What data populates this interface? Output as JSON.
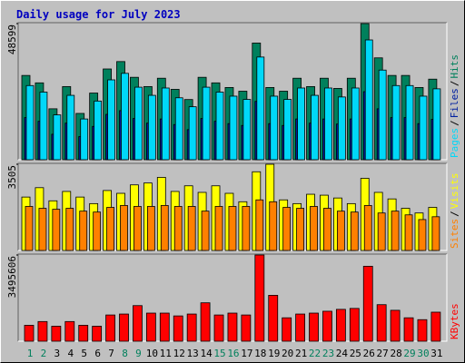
{
  "chart_data": [
    {
      "type": "bar",
      "title": "Daily usage for July 2023",
      "series": [
        {
          "name": "Pages",
          "color": "#00D8F8",
          "values": [
            26475,
            24147,
            16001,
            22984,
            14546,
            20947,
            28511,
            30839,
            25893,
            22984,
            25602,
            22111,
            18910,
            25893,
            24147,
            22693,
            21528,
            36657,
            22693,
            21528,
            25602,
            22984,
            25602,
            22401,
            25602,
            42767,
            32002,
            26475,
            26475,
            22693,
            25311
          ]
        },
        {
          "name": "Files",
          "color": "#0020A0",
          "values": [
            15042,
            13720,
            9091,
            13059,
            8265,
            11901,
            16199,
            17522,
            14712,
            13059,
            14546,
            12563,
            10744,
            14712,
            13720,
            12893,
            12232,
            20828,
            12893,
            12232,
            14546,
            13059,
            14546,
            12728,
            14546,
            24299,
            18183,
            15042,
            15042,
            12893,
            14381
          ]
        },
        {
          "name": "Hits",
          "color": "#00805C",
          "values": [
            30085,
            27440,
            18183,
            26118,
            16530,
            23803,
            32399,
            35044,
            29424,
            26118,
            29093,
            25126,
            21489,
            29424,
            27440,
            25787,
            24464,
            41656,
            25787,
            24464,
            29093,
            26118,
            29093,
            25456,
            29093,
            48599,
            36366,
            30085,
            30085,
            25787,
            28762
          ]
        }
      ],
      "legend_separator": "/",
      "ylim": [
        0,
        48599
      ],
      "yticks": [
        48599
      ]
    },
    {
      "type": "bar",
      "series": [
        {
          "name": "Sites",
          "color": "#FF8000",
          "values": [
            1791,
            1715,
            1676,
            1715,
            1600,
            1562,
            1753,
            1829,
            1791,
            1791,
            1829,
            1791,
            1791,
            1600,
            1791,
            1791,
            1791,
            2057,
            1981,
            1753,
            1715,
            1791,
            1715,
            1600,
            1562,
            1829,
            1524,
            1600,
            1448,
            1257,
            1372
          ]
        },
        {
          "name": "Visits",
          "color": "#FFFF00",
          "values": [
            2172,
            2553,
            2019,
            2400,
            2172,
            1905,
            2438,
            2324,
            2667,
            2743,
            2972,
            2400,
            2629,
            2362,
            2629,
            2324,
            1981,
            3200,
            3505,
            2057,
            1905,
            2286,
            2248,
            2134,
            1905,
            2934,
            2362,
            2096,
            1715,
            1524,
            1753
          ]
        }
      ],
      "legend_separator": "/",
      "ylim": [
        0,
        3505
      ],
      "yticks": [
        3505
      ]
    },
    {
      "type": "bar",
      "series": [
        {
          "name": "KBytes",
          "color": "#FF0000",
          "values": [
            645932,
            797916,
            607936,
            797916,
            645932,
            607936,
            1063888,
            1101884,
            1443848,
            1139880,
            1139880,
            1025892,
            1101884,
            1557836,
            1063888,
            1139880,
            1063888,
            3495606,
            1861804,
            949900,
            1101884,
            1139880,
            1215872,
            1291864,
            1329860,
            3039680,
            1481844,
            1253868,
            949900,
            873908,
            1177876
          ]
        }
      ],
      "ylim": [
        0,
        3495606
      ],
      "yticks": [
        3495606
      ],
      "categories": [
        "1",
        "2",
        "3",
        "4",
        "5",
        "6",
        "7",
        "8",
        "9",
        "10",
        "11",
        "12",
        "13",
        "14",
        "15",
        "16",
        "17",
        "18",
        "19",
        "20",
        "21",
        "22",
        "23",
        "24",
        "25",
        "26",
        "27",
        "28",
        "29",
        "30",
        "31"
      ],
      "category_colors": [
        "#00805C",
        "#00805C",
        "#000000",
        "#000000",
        "#000000",
        "#000000",
        "#000000",
        "#00805C",
        "#00805C",
        "#000000",
        "#000000",
        "#000000",
        "#000000",
        "#000000",
        "#00805C",
        "#00805C",
        "#000000",
        "#000000",
        "#000000",
        "#000000",
        "#000000",
        "#00805C",
        "#00805C",
        "#000000",
        "#000000",
        "#000000",
        "#000000",
        "#000000",
        "#00805C",
        "#00805C",
        "#000000"
      ]
    }
  ]
}
